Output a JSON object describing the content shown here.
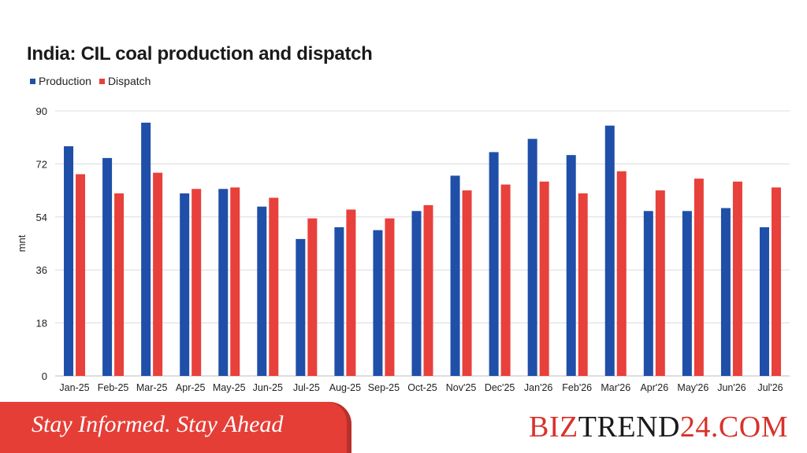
{
  "chart_data": {
    "type": "bar",
    "title": "India: CIL coal production and dispatch",
    "ylabel": "mnt",
    "xlabel": "",
    "ylim": [
      0,
      90
    ],
    "yticks": [
      0,
      18,
      36,
      54,
      72,
      90
    ],
    "grid": true,
    "legend_position": "top-left",
    "categories": [
      "Jan-25",
      "Feb-25",
      "Mar-25",
      "Apr-25",
      "May-25",
      "Jun-25",
      "Jul-25",
      "Aug-25",
      "Sep-25",
      "Oct-25",
      "Nov'25",
      "Dec'25",
      "Jan'26",
      "Feb'26",
      "Mar'26",
      "Apr'26",
      "May'26",
      "Jun'26",
      "Jul'26"
    ],
    "series": [
      {
        "name": "Production",
        "color": "#1f4fa8",
        "values": [
          78,
          74,
          86,
          62,
          63.5,
          57.5,
          46.5,
          50.5,
          49.5,
          56,
          68,
          76,
          80.5,
          75,
          85,
          56,
          56,
          57,
          50.5
        ]
      },
      {
        "name": "Dispatch",
        "color": "#e8403b",
        "values": [
          68.5,
          62,
          69,
          63.5,
          64,
          60.5,
          53.5,
          56.5,
          53.5,
          58,
          63,
          65,
          66,
          62,
          69.5,
          63,
          67,
          66,
          64
        ]
      }
    ]
  },
  "footer": {
    "tagline": "Stay Informed. Stay Ahead",
    "brand_part1": "BIZ",
    "brand_part2": "TREND",
    "brand_part3": "24.COM"
  }
}
